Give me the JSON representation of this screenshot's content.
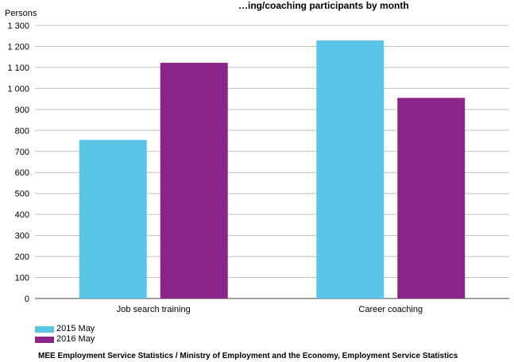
{
  "chart_data": {
    "type": "bar",
    "title": "…ing/coaching participants by month",
    "ylabel": "Persons",
    "categories": [
      "Job search training",
      "Career coaching"
    ],
    "series": [
      {
        "name": "2015 May",
        "color": "#5bc5e8",
        "values": [
          755,
          1228
        ]
      },
      {
        "name": "2016 May",
        "color": "#8b2589",
        "values": [
          1122,
          955
        ]
      }
    ],
    "ylim": [
      0,
      1300
    ],
    "yticks": [
      0,
      100,
      200,
      300,
      400,
      500,
      600,
      700,
      800,
      900,
      1000,
      1100,
      1200,
      1300
    ],
    "ytick_labels": [
      "0",
      "100",
      "200",
      "300",
      "400",
      "500",
      "600",
      "700",
      "800",
      "900",
      "1 000",
      "1 100",
      "1 200",
      "1 300"
    ],
    "grid": true,
    "legend_position": "bottom-left"
  },
  "source": "MEE Employment Service Statistics / Ministry of Employment and the Economy, Employment Service Statistics"
}
